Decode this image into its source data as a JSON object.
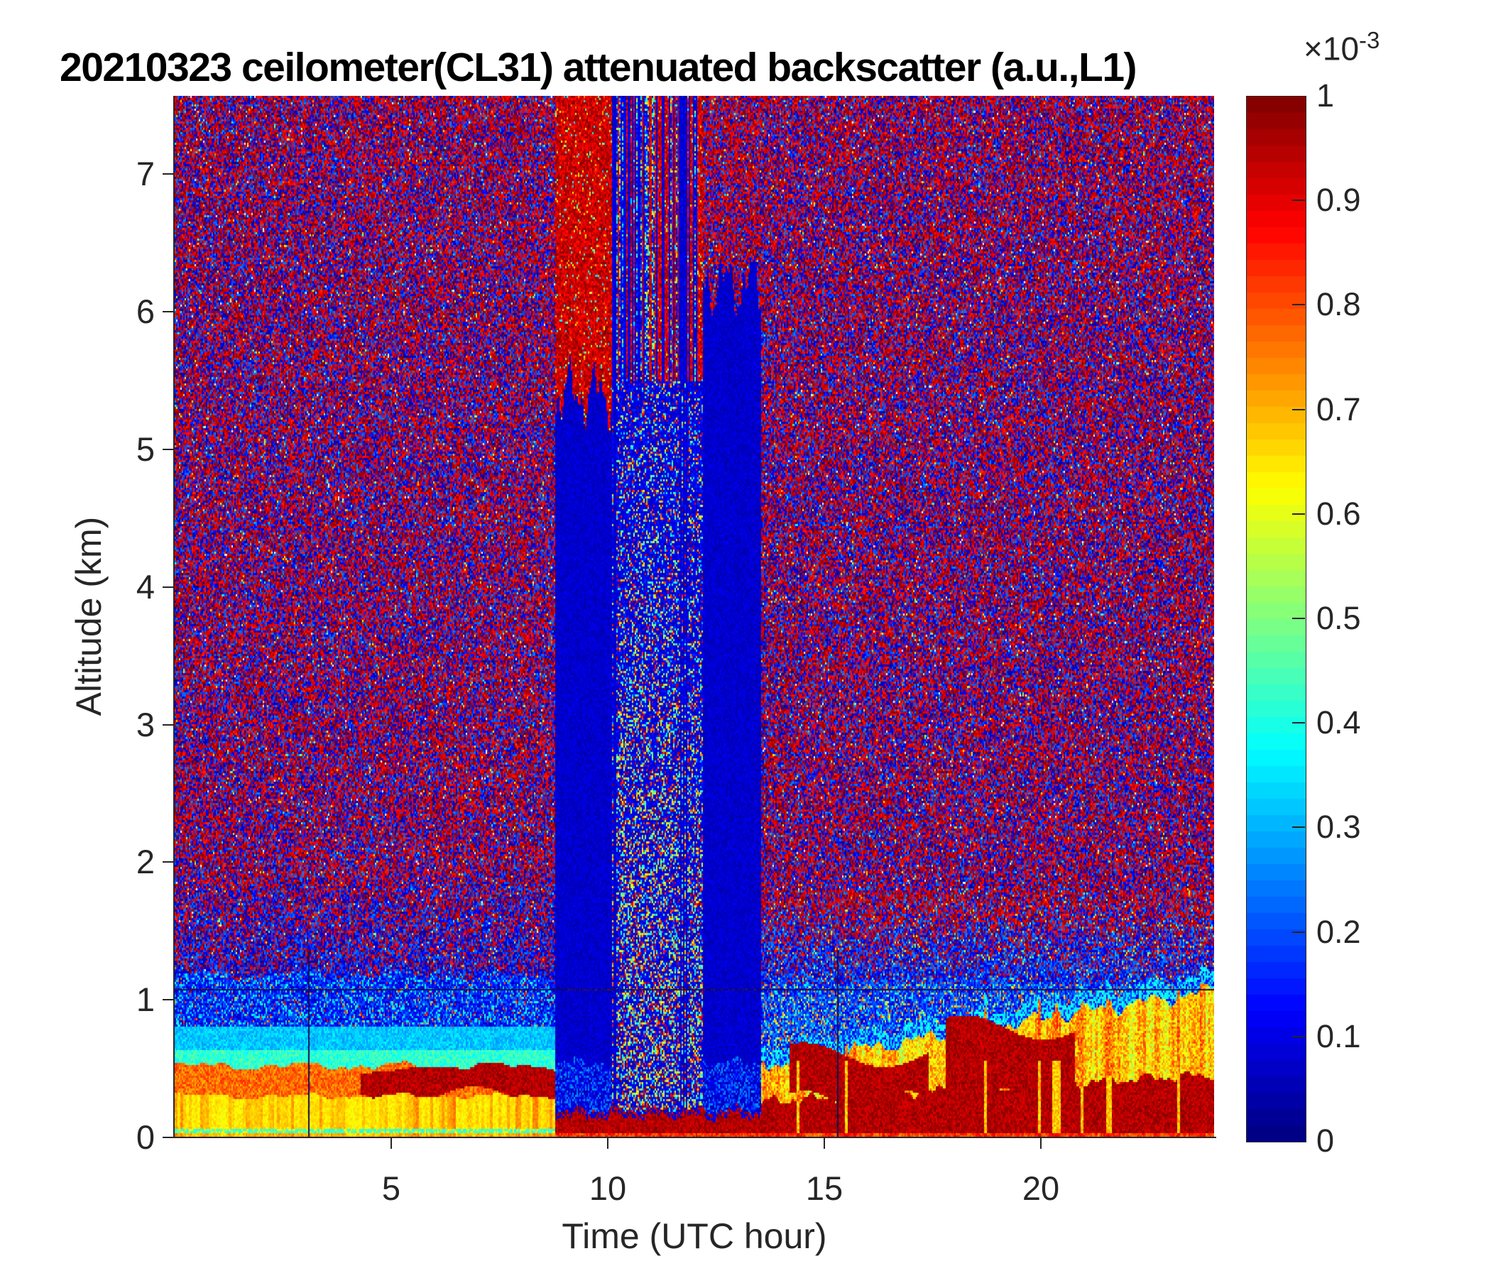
{
  "title": "20210323 ceilometer(CL31) attenuated backscatter (a.u.,L1)",
  "colors": {
    "axis": "#262626",
    "title": "#000000",
    "background": "#ffffff"
  },
  "chart_data": {
    "type": "heatmap",
    "title": "20210323 ceilometer(CL31) attenuated backscatter (a.u.,L1)",
    "xlabel": "Time (UTC hour)",
    "ylabel": "Altitude (km)",
    "xlim": [
      0,
      24
    ],
    "ylim": [
      0,
      7.57
    ],
    "xticks": [
      5,
      10,
      15,
      20
    ],
    "yticks": [
      0,
      1,
      2,
      3,
      4,
      5,
      6,
      7
    ],
    "grid": false,
    "legend": "none",
    "colormap": "jet",
    "colormap_levels": 64,
    "colorbar": {
      "location": "right",
      "min": 0,
      "max": 1,
      "ticks": [
        0,
        0.1,
        0.2,
        0.3,
        0.4,
        0.5,
        0.6,
        0.7,
        0.8,
        0.9,
        1
      ],
      "exponent_base": "×10",
      "exponent_power": "-3"
    },
    "features": {
      "seed": 20210323,
      "noise": {
        "bright_speckle_p": 0.018,
        "white_speckle_p": 0.004,
        "red_value_range": [
          0.84,
          1.0
        ],
        "blue_value_range": [
          0.02,
          0.26
        ]
      },
      "morning_boundary_layer": {
        "t_end": 8.8,
        "surface_yellow_top_km": 0.3,
        "orange_top_km": 0.52,
        "aerosol_dark_red_layer": {
          "t_start": 4.3,
          "z_bottom_km": 0.3,
          "z_top_km": 0.52
        },
        "green_top_km": 0.64,
        "cyan_top_km": 0.8,
        "blue_speckle_top_km": 1.18
      },
      "data_gap": {
        "t_start": 8.8,
        "t_end": 13.55,
        "surface_red_top_km": 0.2,
        "phases": [
          {
            "t0": 8.8,
            "t1": 10.1,
            "kind": "blue_solid",
            "blue_top_km": 5.4,
            "above": "red_solid"
          },
          {
            "t0": 10.1,
            "t1": 12.2,
            "kind": "speckle_stripes",
            "blue_top_km": 7.57,
            "above": "mixed"
          },
          {
            "t0": 12.2,
            "t1": 13.55,
            "kind": "blue_solid",
            "blue_top_km": 6.2,
            "above": "red_noise"
          }
        ]
      },
      "evening_layer": {
        "t_start": 13.55,
        "top_km_start": 0.52,
        "top_km_end": 1.07,
        "dark_red_top_km_start": 0.26,
        "dark_red_top_km_end": 0.46,
        "dark_blobs": [
          {
            "t0": 14.2,
            "t1": 17.4,
            "z0": 0.28,
            "z1": 0.6
          },
          {
            "t0": 17.8,
            "t1": 20.8,
            "z0": 0.3,
            "z1": 0.8
          }
        ]
      },
      "artifact_hline_km": 1.08,
      "artifact_vlines": [
        {
          "t": 3.08,
          "z_max_km": 1.35
        },
        {
          "t": 15.3,
          "z_max_km": 1.35
        }
      ]
    }
  }
}
